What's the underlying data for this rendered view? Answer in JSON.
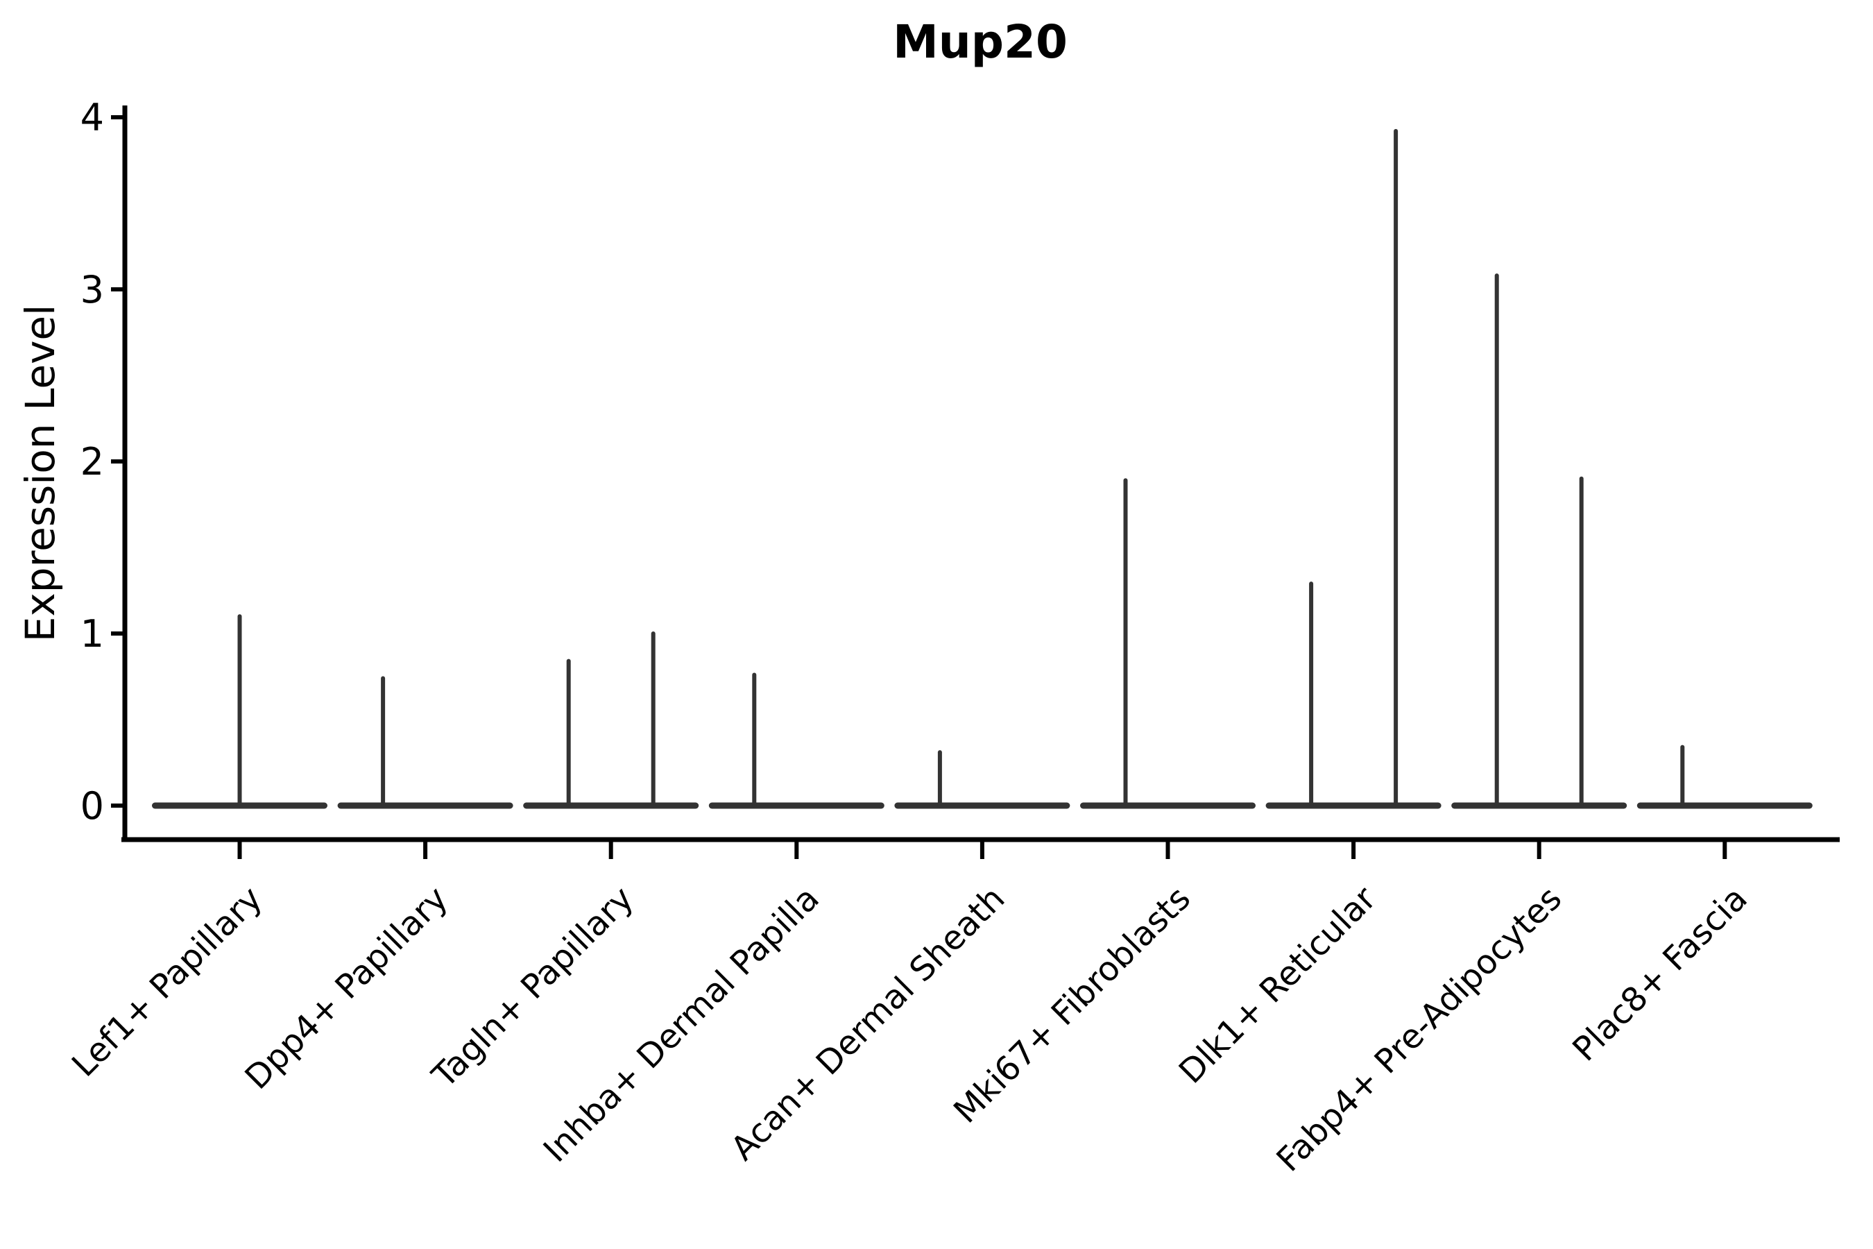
{
  "chart_data": {
    "type": "violin",
    "title": "Mup20",
    "ylabel": "Expression Level",
    "xlabel": "",
    "yticks": [
      0,
      1,
      2,
      3,
      4
    ],
    "ylim": [
      0,
      4.07
    ],
    "grid": false,
    "legend": "none",
    "line_color": "#333333",
    "axis_color": "#000000",
    "categories": [
      "Lef1+ Papillary",
      "Dpp4+ Papillary",
      "Tagln+ Papillary",
      "Inhba+ Dermal Papilla",
      "Acan+ Dermal Sheath",
      "Mki67+ Fibroblasts",
      "Dlk1+ Reticular",
      "Fabp4+ Pre-Adipocytes",
      "Plac8+ Fascia"
    ],
    "description": "Thin collapsed violins: a wide flat body at expression 0 with narrow spikes rising to the maximum expression value of each violin",
    "violins": [
      {
        "category": "Lef1+ Papillary",
        "groups": [
          {
            "position": "full",
            "max": 1.1
          }
        ]
      },
      {
        "category": "Dpp4+ Papillary",
        "groups": [
          {
            "position": "left",
            "max": 0.74
          },
          {
            "position": "right",
            "max": 0
          }
        ]
      },
      {
        "category": "Tagln+ Papillary",
        "groups": [
          {
            "position": "left",
            "max": 0.84
          },
          {
            "position": "right",
            "max": 1.0
          }
        ]
      },
      {
        "category": "Inhba+ Dermal Papilla",
        "groups": [
          {
            "position": "left",
            "max": 0.76
          },
          {
            "position": "right",
            "max": 0
          }
        ]
      },
      {
        "category": "Acan+ Dermal Sheath",
        "groups": [
          {
            "position": "left",
            "max": 0.31
          },
          {
            "position": "right",
            "max": 0
          }
        ]
      },
      {
        "category": "Mki67+ Fibroblasts",
        "groups": [
          {
            "position": "left",
            "max": 1.89
          },
          {
            "position": "right",
            "max": 0
          }
        ]
      },
      {
        "category": "Dlk1+ Reticular",
        "groups": [
          {
            "position": "left",
            "max": 1.29
          },
          {
            "position": "right",
            "max": 3.92
          }
        ]
      },
      {
        "category": "Fabp4+ Pre-Adipocytes",
        "groups": [
          {
            "position": "left",
            "max": 3.08
          },
          {
            "position": "right",
            "max": 1.9
          }
        ]
      },
      {
        "category": "Plac8+ Fascia",
        "groups": [
          {
            "position": "left",
            "max": 0.34
          },
          {
            "position": "right",
            "max": 0
          }
        ]
      }
    ]
  }
}
